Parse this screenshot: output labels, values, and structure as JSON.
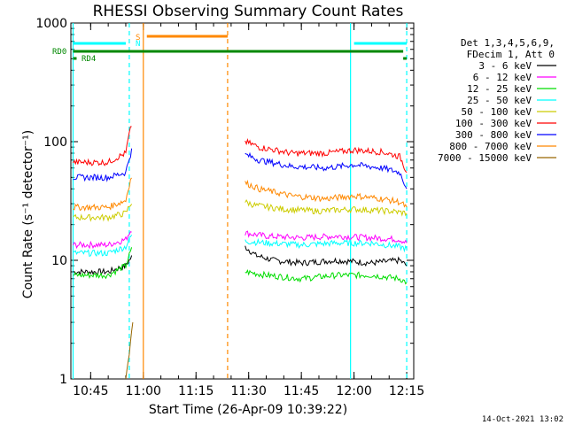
{
  "chart_data": {
    "type": "line",
    "title": "RHESSI Observing Summary Count Rates",
    "xlabel": "Start Time (26-Apr-09 10:39:22)",
    "ylabel": "Count Rate (s⁻¹ detector⁻¹)",
    "y_scale": "log",
    "ylim": [
      1,
      1000
    ],
    "xlim": [
      "10:39:22",
      "12:17:00"
    ],
    "x_tick_labels": [
      "10:45",
      "11:00",
      "11:15",
      "11:30",
      "11:45",
      "12:00",
      "12:15"
    ],
    "y_tick_labels": [
      "1",
      "10",
      "100",
      "1000"
    ],
    "timestamp": "14-Oct-2021 13:02",
    "legend": {
      "placement": "right",
      "header": [
        "Det 1,3,4,5,6,9,",
        "FDecim 1, Att 0"
      ],
      "entries": [
        {
          "label": "3 - 6 keV",
          "color": "#000000"
        },
        {
          "label": "6 - 12 keV",
          "color": "#ff00ff"
        },
        {
          "label": "12 - 25 keV",
          "color": "#00dd00"
        },
        {
          "label": "25 - 50 keV",
          "color": "#00ffff"
        },
        {
          "label": "50 - 100 keV",
          "color": "#cccc00"
        },
        {
          "label": "100 - 300 keV",
          "color": "#ff0000"
        },
        {
          "label": "300 - 800 keV",
          "color": "#0000ff"
        },
        {
          "label": "800 - 7000 keV",
          "color": "#ff8800"
        },
        {
          "label": "7000 - 15000 keV",
          "color": "#996600"
        }
      ]
    },
    "flag_labels": {
      "s": "S",
      "n": "N",
      "rd0": "RD0",
      "rd4": "RD4"
    },
    "series": [
      {
        "name": "3 - 6 keV",
        "color": "#000000",
        "x": [
          "10:40",
          "10:50",
          "10:55",
          "10:57",
          "11:29",
          "11:32",
          "11:37",
          "11:45",
          "11:55",
          "12:05",
          "12:13",
          "12:15"
        ],
        "values": [
          8,
          8,
          9,
          11,
          13,
          11,
          10,
          9.5,
          10,
          9.5,
          10,
          9
        ]
      },
      {
        "name": "6 - 12 keV",
        "color": "#ff00ff",
        "x": [
          "10:40",
          "10:50",
          "10:55",
          "10:57",
          "11:29",
          "11:35",
          "11:45",
          "11:55",
          "12:05",
          "12:13",
          "12:15"
        ],
        "values": [
          13.5,
          13.5,
          15,
          19,
          17,
          16,
          15.5,
          16,
          15.5,
          15,
          14
        ]
      },
      {
        "name": "12 - 25 keV",
        "color": "#00dd00",
        "x": [
          "10:40",
          "10:50",
          "10:55",
          "10:57",
          "11:29",
          "11:35",
          "11:45",
          "11:55",
          "12:05",
          "12:13",
          "12:15"
        ],
        "values": [
          7.5,
          7.5,
          9,
          13,
          8,
          7.5,
          7,
          7.5,
          7.5,
          7,
          6.5
        ]
      },
      {
        "name": "25 - 50 keV",
        "color": "#00ffff",
        "x": [
          "10:40",
          "10:50",
          "10:55",
          "10:57",
          "11:29",
          "11:35",
          "11:45",
          "11:55",
          "12:05",
          "12:13",
          "12:15"
        ],
        "values": [
          11.5,
          11.5,
          13,
          17,
          14.5,
          14,
          13.5,
          14,
          14,
          13,
          12.5
        ]
      },
      {
        "name": "50 - 100 keV",
        "color": "#cccc00",
        "x": [
          "10:40",
          "10:50",
          "10:55",
          "10:57",
          "11:29",
          "11:32",
          "11:40",
          "11:50",
          "12:00",
          "12:10",
          "12:15"
        ],
        "values": [
          23,
          23,
          25,
          32,
          31,
          29,
          27,
          26,
          27,
          26,
          25
        ]
      },
      {
        "name": "100 - 300 keV",
        "color": "#ff0000",
        "x": [
          "10:40",
          "10:50",
          "10:55",
          "10:57",
          "11:29",
          "11:33",
          "11:42",
          "11:52",
          "12:00",
          "12:08",
          "12:13",
          "12:15"
        ],
        "values": [
          67,
          67,
          80,
          150,
          100,
          90,
          80,
          80,
          85,
          82,
          75,
          55
        ]
      },
      {
        "name": "300 - 800 keV",
        "color": "#0000ff",
        "x": [
          "10:40",
          "10:50",
          "10:55",
          "10:57",
          "11:29",
          "11:33",
          "11:42",
          "11:52",
          "12:00",
          "12:08",
          "12:13",
          "12:15"
        ],
        "values": [
          50,
          50,
          55,
          90,
          78,
          70,
          62,
          60,
          64,
          60,
          55,
          40
        ]
      },
      {
        "name": "800 - 7000 keV",
        "color": "#ff8800",
        "x": [
          "10:40",
          "10:50",
          "10:55",
          "10:57",
          "11:29",
          "11:33",
          "11:42",
          "11:52",
          "12:00",
          "12:08",
          "12:13",
          "12:15"
        ],
        "values": [
          28,
          28,
          32,
          55,
          45,
          40,
          35,
          33,
          35,
          33,
          31,
          28
        ]
      },
      {
        "name": "7000 - 15000 keV",
        "color": "#996600",
        "x": [
          "10:55",
          "10:56",
          "10:57"
        ],
        "values": [
          1,
          1.6,
          3
        ]
      }
    ],
    "bars": [
      {
        "label": "S",
        "color": "#ff8800",
        "from": "11:01",
        "to": "11:24"
      },
      {
        "label": "N",
        "color": "#00ffff",
        "from": "10:40",
        "to": "10:55"
      },
      {
        "label": "N",
        "color": "#00ffff",
        "from": "12:00",
        "to": "12:15"
      },
      {
        "label": "RD0",
        "color": "#008800",
        "from": "10:40",
        "to": "12:14"
      },
      {
        "label": "RD4",
        "color": "#008800",
        "from": "10:40",
        "to": "10:41"
      },
      {
        "label": "RD4",
        "color": "#008800",
        "from": "12:14",
        "to": "12:15"
      }
    ],
    "vertical_lines": [
      {
        "t": "10:40",
        "color": "#00ffff",
        "style": "solid"
      },
      {
        "t": "10:56",
        "color": "#00ffff",
        "style": "dashed"
      },
      {
        "t": "11:00",
        "color": "#ff8800",
        "style": "solid"
      },
      {
        "t": "11:24",
        "color": "#ff8800",
        "style": "dashed"
      },
      {
        "t": "11:59",
        "color": "#00ffff",
        "style": "solid"
      },
      {
        "t": "12:15",
        "color": "#00ffff",
        "style": "dashed"
      }
    ]
  }
}
